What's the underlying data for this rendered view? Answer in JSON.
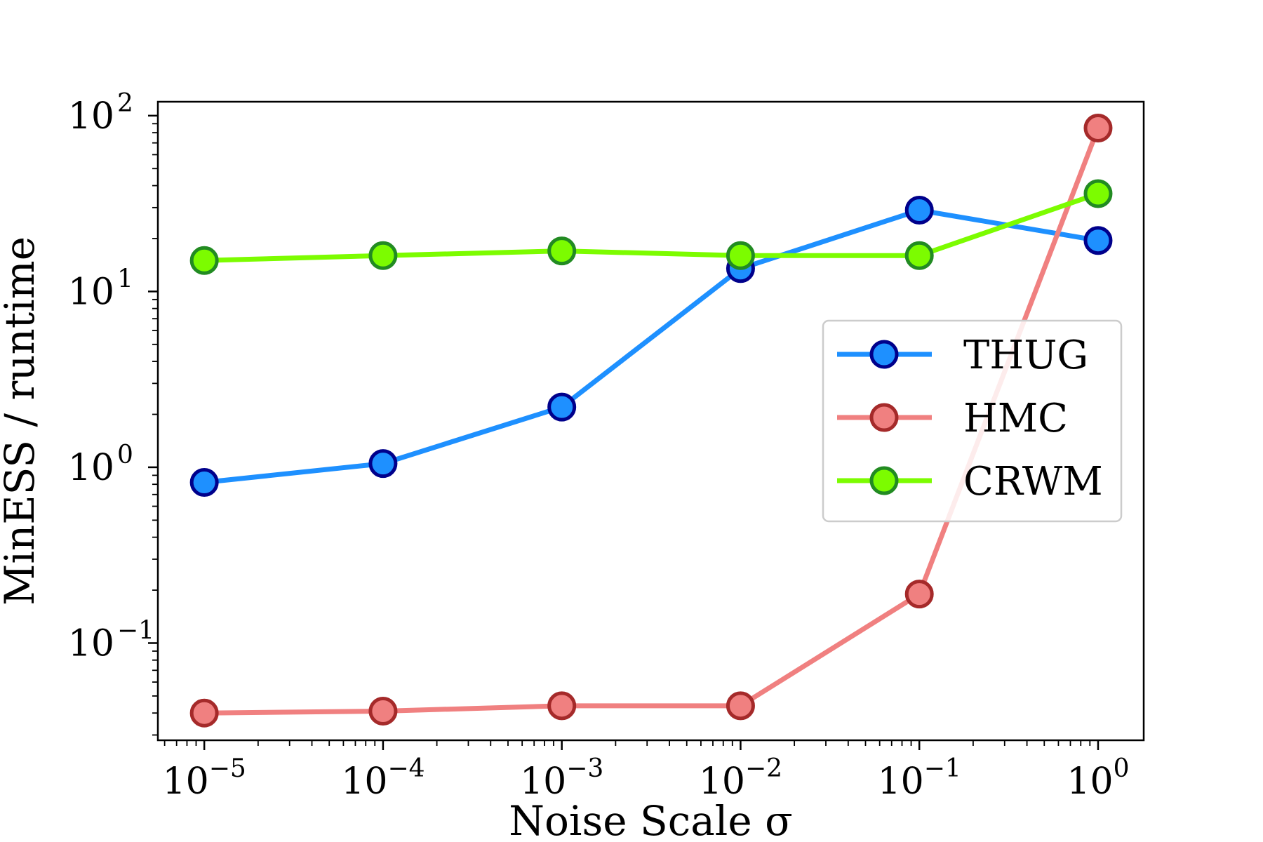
{
  "chart_data": {
    "type": "line",
    "title": "",
    "xlabel": "Noise Scale σ",
    "ylabel": "MinESS / runtime",
    "x_scale": "log",
    "y_scale": "log",
    "xlim": [
      5.5e-06,
      1.8
    ],
    "ylim": [
      0.028,
      120
    ],
    "x": [
      1e-05,
      0.0001,
      0.001,
      0.01,
      0.1,
      1
    ],
    "x_ticks": [
      {
        "value": 1e-05,
        "base": "10",
        "exp": "−5"
      },
      {
        "value": 0.0001,
        "base": "10",
        "exp": "−4"
      },
      {
        "value": 0.001,
        "base": "10",
        "exp": "−3"
      },
      {
        "value": 0.01,
        "base": "10",
        "exp": "−2"
      },
      {
        "value": 0.1,
        "base": "10",
        "exp": "−1"
      },
      {
        "value": 1,
        "base": "10",
        "exp": "0"
      }
    ],
    "y_ticks": [
      {
        "value": 0.1,
        "base": "10",
        "exp": "−1"
      },
      {
        "value": 1,
        "base": "10",
        "exp": "0"
      },
      {
        "value": 10,
        "base": "10",
        "exp": "1"
      },
      {
        "value": 100,
        "base": "10",
        "exp": "2"
      }
    ],
    "grid": false,
    "legend_position": "center-right",
    "series": [
      {
        "name": "THUG",
        "color": "#1e90ff",
        "edge": "#00008b",
        "values": [
          0.82,
          1.05,
          2.2,
          13.5,
          29,
          19.5
        ]
      },
      {
        "name": "HMC",
        "color": "#f08080",
        "edge": "#a52a2a",
        "values": [
          0.04,
          0.041,
          0.044,
          0.044,
          0.19,
          85
        ]
      },
      {
        "name": "CRWM",
        "color": "#7cfc00",
        "edge": "#228b22",
        "values": [
          15,
          16,
          17,
          16,
          16,
          36
        ]
      }
    ]
  }
}
